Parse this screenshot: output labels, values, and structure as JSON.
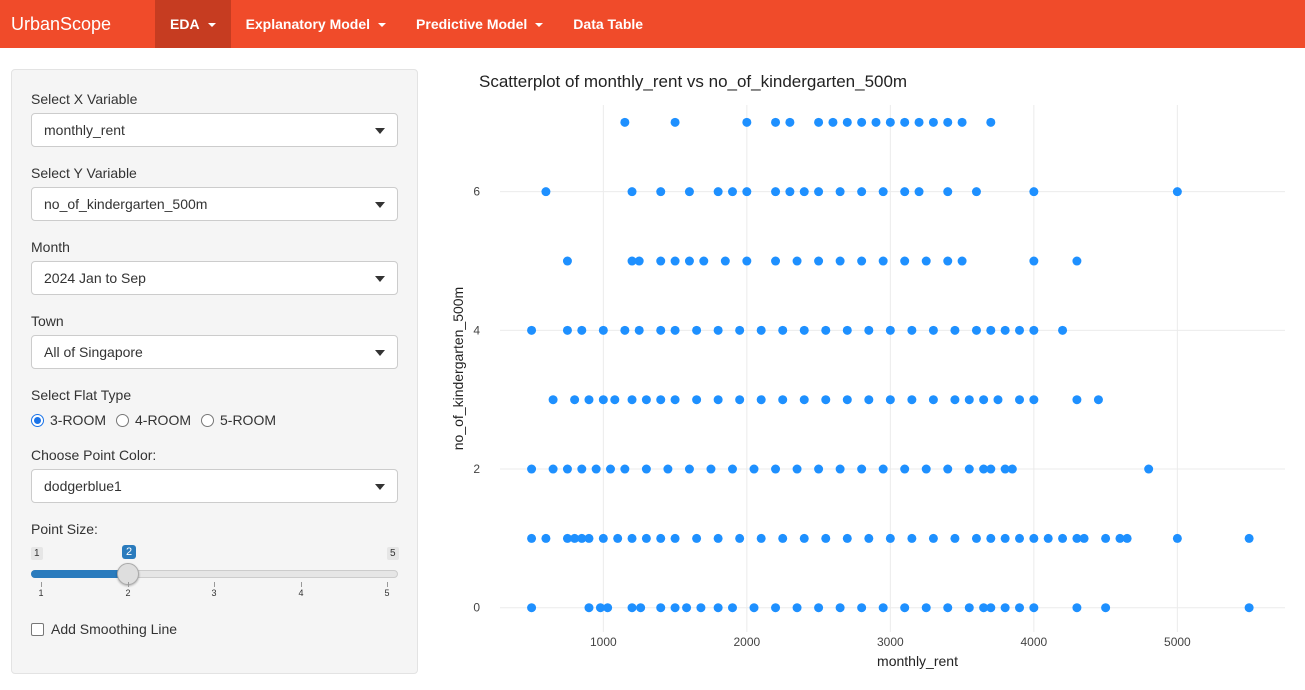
{
  "navbar": {
    "brand": "UrbanScope",
    "items": [
      {
        "label": "EDA",
        "dropdown": true,
        "active": true
      },
      {
        "label": "Explanatory Model",
        "dropdown": true,
        "active": false
      },
      {
        "label": "Predictive Model",
        "dropdown": true,
        "active": false
      },
      {
        "label": "Data Table",
        "dropdown": false,
        "active": false
      }
    ],
    "color": "#f04b2a"
  },
  "sidebar": {
    "x_variable": {
      "label": "Select X Variable",
      "value": "monthly_rent"
    },
    "y_variable": {
      "label": "Select Y Variable",
      "value": "no_of_kindergarten_500m"
    },
    "month": {
      "label": "Month",
      "value": "2024 Jan to Sep"
    },
    "town": {
      "label": "Town",
      "value": "All of Singapore"
    },
    "flat_type": {
      "label": "Select Flat Type",
      "options": [
        "3-ROOM",
        "4-ROOM",
        "5-ROOM"
      ],
      "selected": "3-ROOM"
    },
    "point_color": {
      "label": "Choose Point Color:",
      "value": "dodgerblue1"
    },
    "point_size": {
      "label": "Point Size:",
      "min": "1",
      "max": "5",
      "value": "2",
      "ticks": [
        "1",
        "2",
        "3",
        "4",
        "5"
      ]
    },
    "smoothing": {
      "label": "Add Smoothing Line",
      "checked": false
    }
  },
  "chart_data": {
    "type": "scatter",
    "title": "Scatterplot of monthly_rent vs no_of_kindergarten_500m",
    "xlabel": "monthly_rent",
    "ylabel": "no_of_kindergarten_500m",
    "xlim": [
      280,
      5750
    ],
    "ylim": [
      -0.35,
      7.25
    ],
    "xticks": [
      1000,
      2000,
      3000,
      4000,
      5000
    ],
    "yticks": [
      0,
      2,
      4,
      6
    ],
    "grid": true,
    "point_color": "#1e90ff",
    "rows": [
      {
        "y": 0,
        "x": [
          500,
          900,
          980,
          1030,
          1200,
          1260,
          1400,
          1500,
          1580,
          1680,
          1800,
          1900,
          2050,
          2200,
          2350,
          2500,
          2650,
          2800,
          2950,
          3100,
          3250,
          3400,
          3550,
          3650,
          3700,
          3800,
          3900,
          4000,
          4300,
          4500,
          5500
        ]
      },
      {
        "y": 1,
        "x": [
          500,
          600,
          750,
          800,
          850,
          900,
          1000,
          1100,
          1200,
          1300,
          1400,
          1500,
          1650,
          1800,
          1950,
          2100,
          2250,
          2400,
          2550,
          2700,
          2850,
          3000,
          3150,
          3300,
          3450,
          3600,
          3700,
          3800,
          3900,
          4000,
          4100,
          4200,
          4300,
          4350,
          4500,
          4600,
          4650,
          5000,
          5500
        ]
      },
      {
        "y": 2,
        "x": [
          500,
          650,
          750,
          850,
          950,
          1050,
          1150,
          1300,
          1450,
          1600,
          1750,
          1900,
          2050,
          2200,
          2350,
          2500,
          2650,
          2800,
          2950,
          3100,
          3250,
          3400,
          3550,
          3650,
          3700,
          3800,
          3850,
          4800
        ]
      },
      {
        "y": 3,
        "x": [
          650,
          800,
          900,
          1000,
          1080,
          1200,
          1300,
          1400,
          1500,
          1650,
          1800,
          1950,
          2100,
          2250,
          2400,
          2550,
          2700,
          2850,
          3000,
          3150,
          3300,
          3450,
          3550,
          3650,
          3750,
          3900,
          4000,
          4300,
          4450
        ]
      },
      {
        "y": 4,
        "x": [
          500,
          750,
          850,
          1000,
          1150,
          1250,
          1400,
          1500,
          1650,
          1800,
          1950,
          2100,
          2250,
          2400,
          2550,
          2700,
          2850,
          3000,
          3150,
          3300,
          3450,
          3600,
          3700,
          3800,
          3900,
          4000,
          4200
        ]
      },
      {
        "y": 5,
        "x": [
          750,
          1200,
          1250,
          1400,
          1500,
          1600,
          1700,
          1850,
          2000,
          2200,
          2350,
          2500,
          2650,
          2800,
          2950,
          3100,
          3250,
          3400,
          3500,
          4000,
          4300
        ]
      },
      {
        "y": 6,
        "x": [
          600,
          1200,
          1400,
          1600,
          1800,
          1900,
          2000,
          2200,
          2300,
          2400,
          2500,
          2650,
          2800,
          2950,
          3100,
          3200,
          3400,
          3600,
          4000,
          5000
        ]
      },
      {
        "y": 7,
        "x": [
          1150,
          1500,
          2000,
          2200,
          2300,
          2500,
          2600,
          2700,
          2800,
          2900,
          3000,
          3100,
          3200,
          3300,
          3400,
          3500,
          3700
        ]
      }
    ]
  }
}
